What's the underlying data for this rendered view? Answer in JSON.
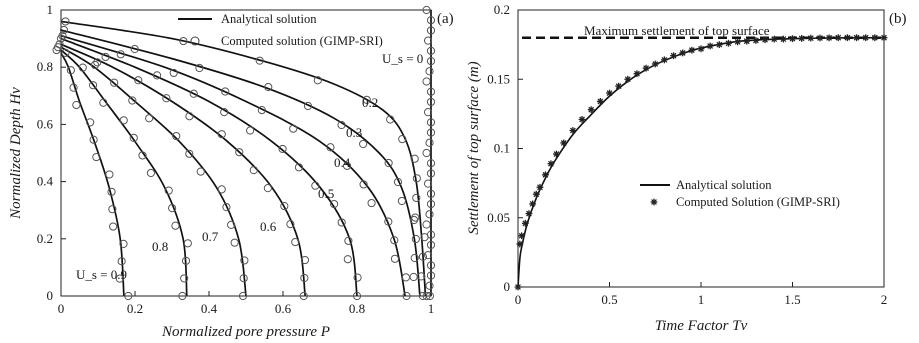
{
  "chart_data": [
    {
      "type": "line",
      "panel_label": "(a)",
      "xlabel": "Normalized pore pressure P",
      "ylabel": "Normalized Depth Hv",
      "xlim": [
        0,
        1
      ],
      "ylim": [
        0,
        1
      ],
      "xticks": [
        "0",
        "0.2",
        "0.4",
        "0.6",
        "0.8",
        "1"
      ],
      "yticks": [
        "0",
        "0.2",
        "0.4",
        "0.6",
        "0.8",
        "1"
      ],
      "legend": {
        "position": "top-right",
        "entries": [
          "Analytical solution",
          "Computed solution (GIMP-SRI)"
        ]
      },
      "series": [
        {
          "name": "Us=0",
          "label": "U_s = 0",
          "x": [
            1.0,
            1.0,
            1.0,
            1.0,
            1.0,
            1.0
          ],
          "y": [
            0.0,
            0.2,
            0.4,
            0.6,
            0.8,
            1.0
          ]
        },
        {
          "name": "Us=0.2",
          "label": "0.2",
          "x": [
            0.985,
            0.975,
            0.96,
            0.93,
            0.87,
            0.74,
            0.55,
            0.3,
            0.0
          ],
          "y": [
            0.0,
            0.2,
            0.4,
            0.55,
            0.65,
            0.74,
            0.82,
            0.9,
            0.96
          ]
        },
        {
          "name": "Us=0.3",
          "label": "0.3",
          "x": [
            0.97,
            0.955,
            0.92,
            0.86,
            0.74,
            0.55,
            0.3,
            0.0
          ],
          "y": [
            0.0,
            0.2,
            0.38,
            0.5,
            0.62,
            0.73,
            0.83,
            0.93
          ]
        },
        {
          "name": "Us=0.4",
          "label": "0.4",
          "x": [
            0.93,
            0.9,
            0.83,
            0.7,
            0.5,
            0.28,
            0.0
          ],
          "y": [
            0.0,
            0.2,
            0.38,
            0.54,
            0.68,
            0.8,
            0.91
          ]
        },
        {
          "name": "Us=0.5",
          "label": "0.5",
          "x": [
            0.8,
            0.78,
            0.7,
            0.57,
            0.4,
            0.2,
            0.0
          ],
          "y": [
            0.0,
            0.2,
            0.38,
            0.54,
            0.68,
            0.8,
            0.9
          ]
        },
        {
          "name": "Us=0.6",
          "label": "0.6",
          "x": [
            0.66,
            0.64,
            0.57,
            0.45,
            0.3,
            0.14,
            0.0
          ],
          "y": [
            0.0,
            0.2,
            0.38,
            0.54,
            0.68,
            0.8,
            0.88
          ]
        },
        {
          "name": "Us=0.7",
          "label": "0.7",
          "x": [
            0.5,
            0.48,
            0.42,
            0.32,
            0.2,
            0.09,
            0.0
          ],
          "y": [
            0.0,
            0.2,
            0.38,
            0.54,
            0.68,
            0.8,
            0.87
          ]
        },
        {
          "name": "Us=0.8",
          "label": "0.8",
          "x": [
            0.34,
            0.33,
            0.28,
            0.2,
            0.12,
            0.05,
            0.0
          ],
          "y": [
            0.0,
            0.2,
            0.38,
            0.54,
            0.68,
            0.8,
            0.86
          ]
        },
        {
          "name": "Us=0.9",
          "label": "U_s = 0.9",
          "x": [
            0.17,
            0.16,
            0.13,
            0.09,
            0.05,
            0.02,
            0.0
          ],
          "y": [
            0.0,
            0.2,
            0.38,
            0.54,
            0.68,
            0.8,
            0.85
          ]
        }
      ]
    },
    {
      "type": "line",
      "panel_label": "(b)",
      "xlabel": "Time Factor Tv",
      "ylabel": "Settlement of top surface (m)",
      "xlim": [
        0,
        2
      ],
      "ylim": [
        0,
        0.2
      ],
      "xticks": [
        "0",
        "0.5",
        "1",
        "1.5",
        "2"
      ],
      "yticks": [
        "0",
        "0.05",
        "0.1",
        "0.15",
        "0.2"
      ],
      "max_settlement": 0.18,
      "annotation": "Maximum settlement of top surface",
      "legend": {
        "position": "center-right",
        "entries": [
          "Analytical solution",
          "Computed Solution (GIMP-SRI)"
        ]
      },
      "analytical": {
        "x": [
          0,
          0.01,
          0.02,
          0.05,
          0.1,
          0.15,
          0.2,
          0.3,
          0.4,
          0.5,
          0.6,
          0.7,
          0.8,
          0.9,
          1.0,
          1.2,
          1.4,
          1.6,
          1.8,
          2.0
        ],
        "y": [
          0,
          0.0203,
          0.0287,
          0.0454,
          0.0642,
          0.0786,
          0.0907,
          0.1101,
          0.1245,
          0.1378,
          0.1485,
          0.157,
          0.1635,
          0.1686,
          0.1725,
          0.1773,
          0.1789,
          0.1796,
          0.1799,
          0.18
        ]
      },
      "computed": {
        "x": [
          0,
          0.01,
          0.02,
          0.04,
          0.06,
          0.08,
          0.1,
          0.12,
          0.15,
          0.18,
          0.21,
          0.25,
          0.3,
          0.35,
          0.4,
          0.45,
          0.5,
          0.55,
          0.6,
          0.65,
          0.7,
          0.75,
          0.8,
          0.85,
          0.9,
          0.95,
          1.0,
          1.05,
          1.1,
          1.15,
          1.2,
          1.25,
          1.3,
          1.35,
          1.4,
          1.45,
          1.5,
          1.55,
          1.6,
          1.65,
          1.7,
          1.75,
          1.8,
          1.85,
          1.9,
          1.95,
          2.0
        ],
        "y": [
          0,
          0.031,
          0.037,
          0.046,
          0.053,
          0.06,
          0.067,
          0.072,
          0.081,
          0.089,
          0.096,
          0.104,
          0.113,
          0.121,
          0.128,
          0.134,
          0.14,
          0.145,
          0.15,
          0.154,
          0.158,
          0.161,
          0.164,
          0.167,
          0.169,
          0.171,
          0.172,
          0.174,
          0.175,
          0.176,
          0.177,
          0.1775,
          0.178,
          0.1785,
          0.179,
          0.179,
          0.1793,
          0.1795,
          0.1797,
          0.1798,
          0.1799,
          0.18,
          0.18,
          0.18,
          0.18,
          0.18,
          0.18
        ]
      }
    }
  ]
}
